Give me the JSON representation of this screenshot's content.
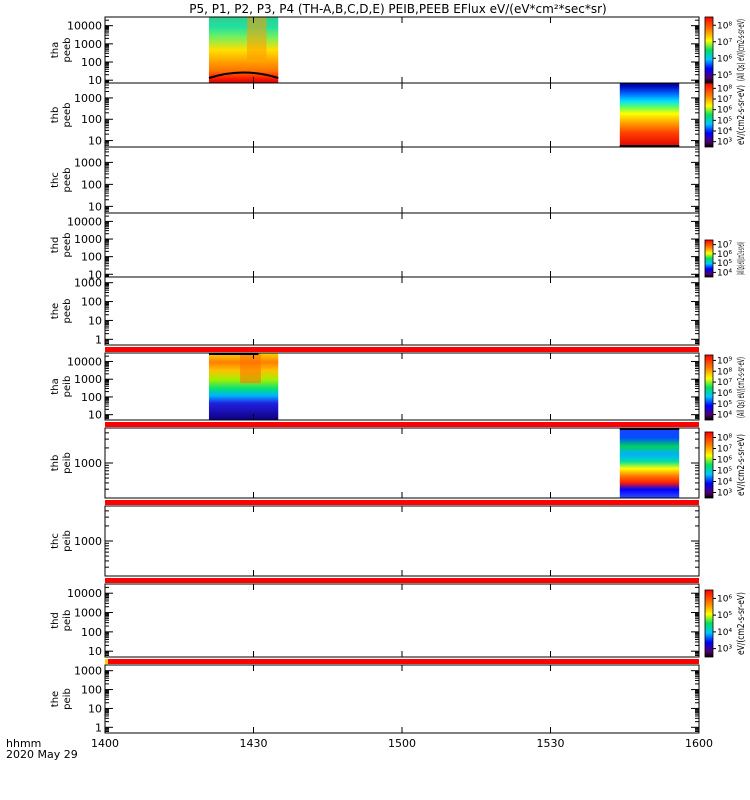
{
  "chart_data": {
    "type": "heatmap",
    "title": "P5, P1, P2, P3, P4 (TH-A,B,C,D,E) PEIB,PEEB EFlux eV/(eV*cm²*sec*sr)",
    "date": "2020 May 29",
    "x_units_label": "hhmm",
    "x_ticks": [
      "1400",
      "1430",
      "1500",
      "1530",
      "1600"
    ],
    "x_range": [
      "14:00",
      "16:00"
    ],
    "y_scale": "log",
    "panels": [
      {
        "probe": "tha",
        "instrument": "peeb",
        "ylim": [
          7,
          30000
        ],
        "y_ticks": [
          "10",
          "100",
          "1000",
          "10000"
        ],
        "blocks": [
          {
            "t": [
              "14:21",
              "14:35"
            ],
            "profile": "broad-green-orange"
          }
        ],
        "colorbar": {
          "ticks": [
            "10⁵",
            "10⁶",
            "10⁷",
            "10⁸"
          ],
          "label": "(All Qs) eV/(cm2-s-sr-eV)"
        }
      },
      {
        "probe": "thb",
        "instrument": "peeb",
        "ylim": [
          5,
          5000
        ],
        "y_ticks": [
          "10",
          "100",
          "1000"
        ],
        "blocks": [
          {
            "t": [
              "15:44",
              "15:56"
            ],
            "profile": "red-bottom-blue-top"
          }
        ],
        "colorbar": {
          "ticks": [
            "10³",
            "10⁴",
            "10⁵",
            "10⁶",
            "10⁷",
            "10⁸"
          ],
          "label": "eV/(cm2-s-sr-eV)"
        }
      },
      {
        "probe": "thc",
        "instrument": "peeb",
        "ylim": [
          5,
          5000
        ],
        "y_ticks": [
          "10",
          "100",
          "1000"
        ],
        "blocks": []
      },
      {
        "probe": "thd",
        "instrument": "peeb",
        "ylim": [
          7,
          30000
        ],
        "y_ticks": [
          "10",
          "100",
          "1000",
          "10000"
        ],
        "blocks": [],
        "colorbar": {
          "ticks": [
            "10⁴",
            "10⁵",
            "10⁶",
            "10⁷"
          ],
          "label": "(All Qs) eV/(cm2-s-sr-eV)"
        }
      },
      {
        "probe": "the",
        "instrument": "peeb",
        "ylim": [
          0.5,
          2000
        ],
        "y_ticks": [
          "1",
          "10",
          "100",
          "1000"
        ],
        "blocks": []
      },
      {
        "probe": "tha",
        "instrument": "peib",
        "ylim": [
          5,
          30000
        ],
        "y_ticks": [
          "10",
          "100",
          "1000",
          "10000"
        ],
        "blocks": [
          {
            "t": [
              "14:21",
              "14:35"
            ],
            "profile": "green-orange-blue-bottom"
          }
        ],
        "colorbar": {
          "ticks": [
            "10⁴",
            "10⁵",
            "10⁶",
            "10⁷",
            "10⁸",
            "10⁹"
          ],
          "label": "(All Qs) eV/(cm2-s-sr-eV)"
        }
      },
      {
        "probe": "thb",
        "instrument": "peib",
        "ylim": [
          200,
          5000
        ],
        "y_ticks": [
          "1000"
        ],
        "blocks": [
          {
            "t": [
              "15:44",
              "15:56"
            ],
            "profile": "banded-blue-red"
          }
        ],
        "colorbar": {
          "ticks": [
            "10³",
            "10⁴",
            "10⁵",
            "10⁶",
            "10⁷",
            "10⁸"
          ],
          "label": "eV/(cm2-s-sr-eV)"
        }
      },
      {
        "probe": "thc",
        "instrument": "peib",
        "ylim": [
          200,
          5000
        ],
        "y_ticks": [
          "1000"
        ],
        "blocks": []
      },
      {
        "probe": "thd",
        "instrument": "peib",
        "ylim": [
          5,
          30000
        ],
        "y_ticks": [
          "10",
          "100",
          "1000",
          "10000"
        ],
        "blocks": [],
        "colorbar": {
          "ticks": [
            "10³",
            "10⁴",
            "10⁵",
            "10⁶"
          ],
          "label": "eV/(cm2-s-sr-eV)"
        }
      },
      {
        "probe": "the",
        "instrument": "peib",
        "ylim": [
          0.5,
          2000
        ],
        "y_ticks": [
          "1",
          "10",
          "100",
          "1000"
        ],
        "blocks": []
      }
    ],
    "colors": {
      "background": "#ffffff",
      "axes": "#000000",
      "separator_red": "#ff0000",
      "separator_yellow": "#ffd200"
    }
  }
}
